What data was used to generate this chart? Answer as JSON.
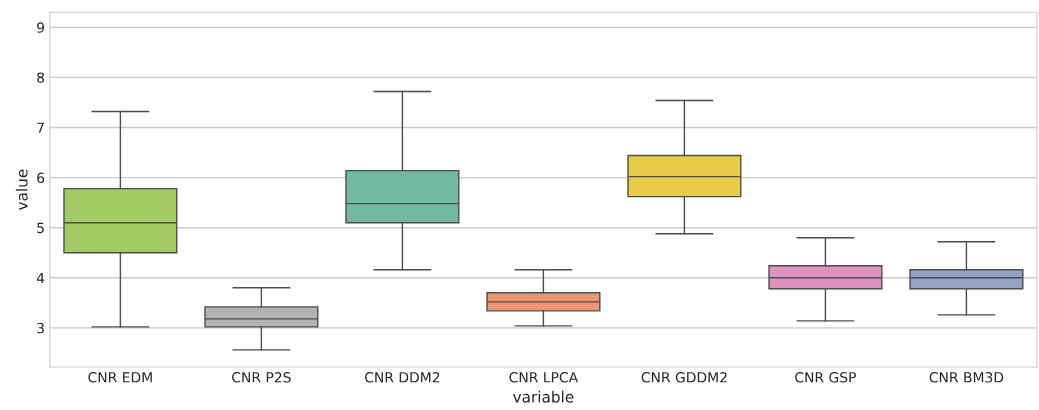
{
  "chart_data": {
    "type": "box",
    "xlabel": "variable",
    "ylabel": "value",
    "categories": [
      "CNR EDM",
      "CNR P2S",
      "CNR DDM2",
      "CNR LPCA",
      "CNR GDDM2",
      "CNR GSP",
      "CNR BM3D"
    ],
    "colors": [
      "#a2cb61",
      "#b3b3b3",
      "#73b9a1",
      "#ec9671",
      "#e8cc48",
      "#dd92c0",
      "#95a3c6"
    ],
    "boxes": [
      {
        "low": 3.02,
        "q1": 4.5,
        "median": 5.1,
        "q3": 5.78,
        "high": 7.32
      },
      {
        "low": 2.56,
        "q1": 3.02,
        "median": 3.18,
        "q3": 3.42,
        "high": 3.8
      },
      {
        "low": 4.16,
        "q1": 5.1,
        "median": 5.48,
        "q3": 6.14,
        "high": 7.72
      },
      {
        "low": 3.04,
        "q1": 3.34,
        "median": 3.52,
        "q3": 3.7,
        "high": 4.16
      },
      {
        "low": 4.88,
        "q1": 5.62,
        "median": 6.02,
        "q3": 6.44,
        "high": 7.54
      },
      {
        "low": 3.14,
        "q1": 3.78,
        "median": 4.0,
        "q3": 4.24,
        "high": 4.8
      },
      {
        "low": 3.26,
        "q1": 3.78,
        "median": 4.0,
        "q3": 4.16,
        "high": 4.72
      }
    ],
    "ylim": [
      2.22,
      9.3
    ],
    "yticks": [
      3,
      4,
      5,
      6,
      7,
      8,
      9
    ],
    "grid": "y"
  }
}
